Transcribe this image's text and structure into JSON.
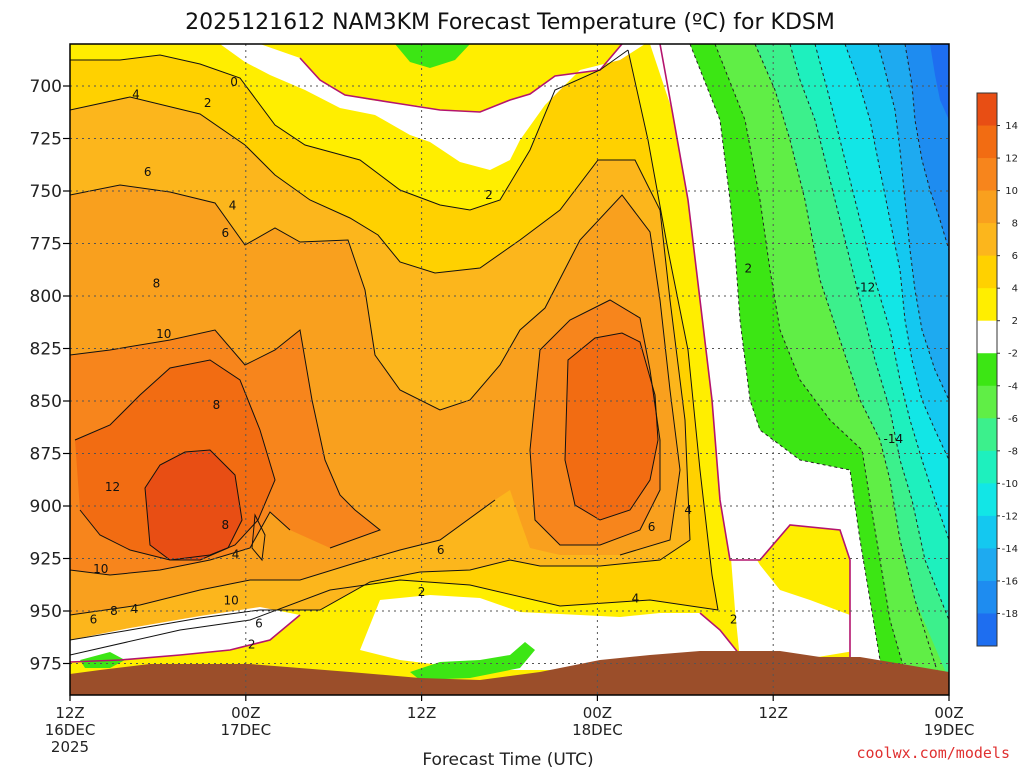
{
  "chart_data": {
    "type": "heatmap",
    "title": "2025121612 NAM3KM Forecast Temperature (ºC) for KDSM",
    "xlabel": "Forecast Time (UTC)",
    "ylabel": "",
    "x_ticks": [
      {
        "hour": 0,
        "line1": "12Z",
        "line2": "16DEC",
        "line3": "2025"
      },
      {
        "hour": 12,
        "line1": "00Z",
        "line2": "17DEC",
        "line3": ""
      },
      {
        "hour": 24,
        "line1": "12Z",
        "line2": "",
        "line3": ""
      },
      {
        "hour": 36,
        "line1": "00Z",
        "line2": "18DEC",
        "line3": ""
      },
      {
        "hour": 48,
        "line1": "12Z",
        "line2": "",
        "line3": ""
      },
      {
        "hour": 60,
        "line1": "00Z",
        "line2": "19DEC",
        "line3": ""
      }
    ],
    "xlim": [
      0,
      60
    ],
    "y_ticks": [
      "700",
      "725",
      "750",
      "775",
      "800",
      "825",
      "850",
      "875",
      "900",
      "925",
      "950",
      "975"
    ],
    "ylim": [
      680,
      990
    ],
    "colorbar": {
      "labels": [
        "14",
        "12",
        "10",
        "8",
        "6",
        "4",
        "2",
        "-2",
        "-4",
        "-6",
        "-8",
        "-10",
        "-12",
        "-14",
        "-16",
        "-18"
      ],
      "bands": [
        {
          "from": 14,
          "to": 16,
          "color": "#e84e14"
        },
        {
          "from": 12,
          "to": 14,
          "color": "#f26c12"
        },
        {
          "from": 10,
          "to": 12,
          "color": "#f7851c"
        },
        {
          "from": 8,
          "to": 10,
          "color": "#f9a01e"
        },
        {
          "from": 6,
          "to": 8,
          "color": "#fcb61c"
        },
        {
          "from": 4,
          "to": 6,
          "color": "#ffd100"
        },
        {
          "from": 2,
          "to": 4,
          "color": "#ffee00"
        },
        {
          "from": -2,
          "to": 2,
          "color": "#ffffff"
        },
        {
          "from": -4,
          "to": -2,
          "color": "#3ce614"
        },
        {
          "from": -6,
          "to": -4,
          "color": "#60ee46"
        },
        {
          "from": -8,
          "to": -6,
          "color": "#3cf08c"
        },
        {
          "from": -10,
          "to": -8,
          "color": "#1ef0be"
        },
        {
          "from": -12,
          "to": -10,
          "color": "#12e6e6"
        },
        {
          "from": -14,
          "to": -12,
          "color": "#14c8f0"
        },
        {
          "from": -16,
          "to": -14,
          "color": "#1eaaf0"
        },
        {
          "from": -18,
          "to": -16,
          "color": "#1e8cf0"
        },
        {
          "from": -20,
          "to": -18,
          "color": "#1e6ef0"
        }
      ]
    },
    "contour_labels": [
      {
        "hour": 11.2,
        "p": 698,
        "text": "0"
      },
      {
        "hour": 9.4,
        "p": 708,
        "text": "2"
      },
      {
        "hour": 4.5,
        "p": 704,
        "text": "4"
      },
      {
        "hour": 5.3,
        "p": 741,
        "text": "6"
      },
      {
        "hour": 11.1,
        "p": 757,
        "text": "4"
      },
      {
        "hour": 10.6,
        "p": 770,
        "text": "6"
      },
      {
        "hour": 5.9,
        "p": 794,
        "text": "8"
      },
      {
        "hour": 6.4,
        "p": 818,
        "text": "10"
      },
      {
        "hour": 10.0,
        "p": 852,
        "text": "8"
      },
      {
        "hour": 2.9,
        "p": 891,
        "text": "12"
      },
      {
        "hour": 2.1,
        "p": 930,
        "text": "10"
      },
      {
        "hour": 3.0,
        "p": 950,
        "text": "8"
      },
      {
        "hour": 1.6,
        "p": 954,
        "text": "6"
      },
      {
        "hour": 4.4,
        "p": 949,
        "text": "4"
      },
      {
        "hour": 11.0,
        "p": 945,
        "text": "10"
      },
      {
        "hour": 12.9,
        "p": 956,
        "text": "6"
      },
      {
        "hour": 10.6,
        "p": 909,
        "text": "8"
      },
      {
        "hour": 11.3,
        "p": 923,
        "text": "4"
      },
      {
        "hour": 25.3,
        "p": 921,
        "text": "6"
      },
      {
        "hour": 24.0,
        "p": 941,
        "text": "2"
      },
      {
        "hour": 28.6,
        "p": 752,
        "text": "2"
      },
      {
        "hour": 12.4,
        "p": 966,
        "text": "2"
      },
      {
        "hour": 46.3,
        "p": 787,
        "text": "2"
      },
      {
        "hour": 39.7,
        "p": 910,
        "text": "6"
      },
      {
        "hour": 42.2,
        "p": 902,
        "text": "4"
      },
      {
        "hour": 38.6,
        "p": 944,
        "text": "4"
      },
      {
        "hour": 45.3,
        "p": 954,
        "text": "2"
      },
      {
        "hour": 54.3,
        "p": 796,
        "text": "-12"
      },
      {
        "hour": 56.2,
        "p": 868,
        "text": "-14"
      }
    ],
    "credit": "coolwx.com/models"
  }
}
